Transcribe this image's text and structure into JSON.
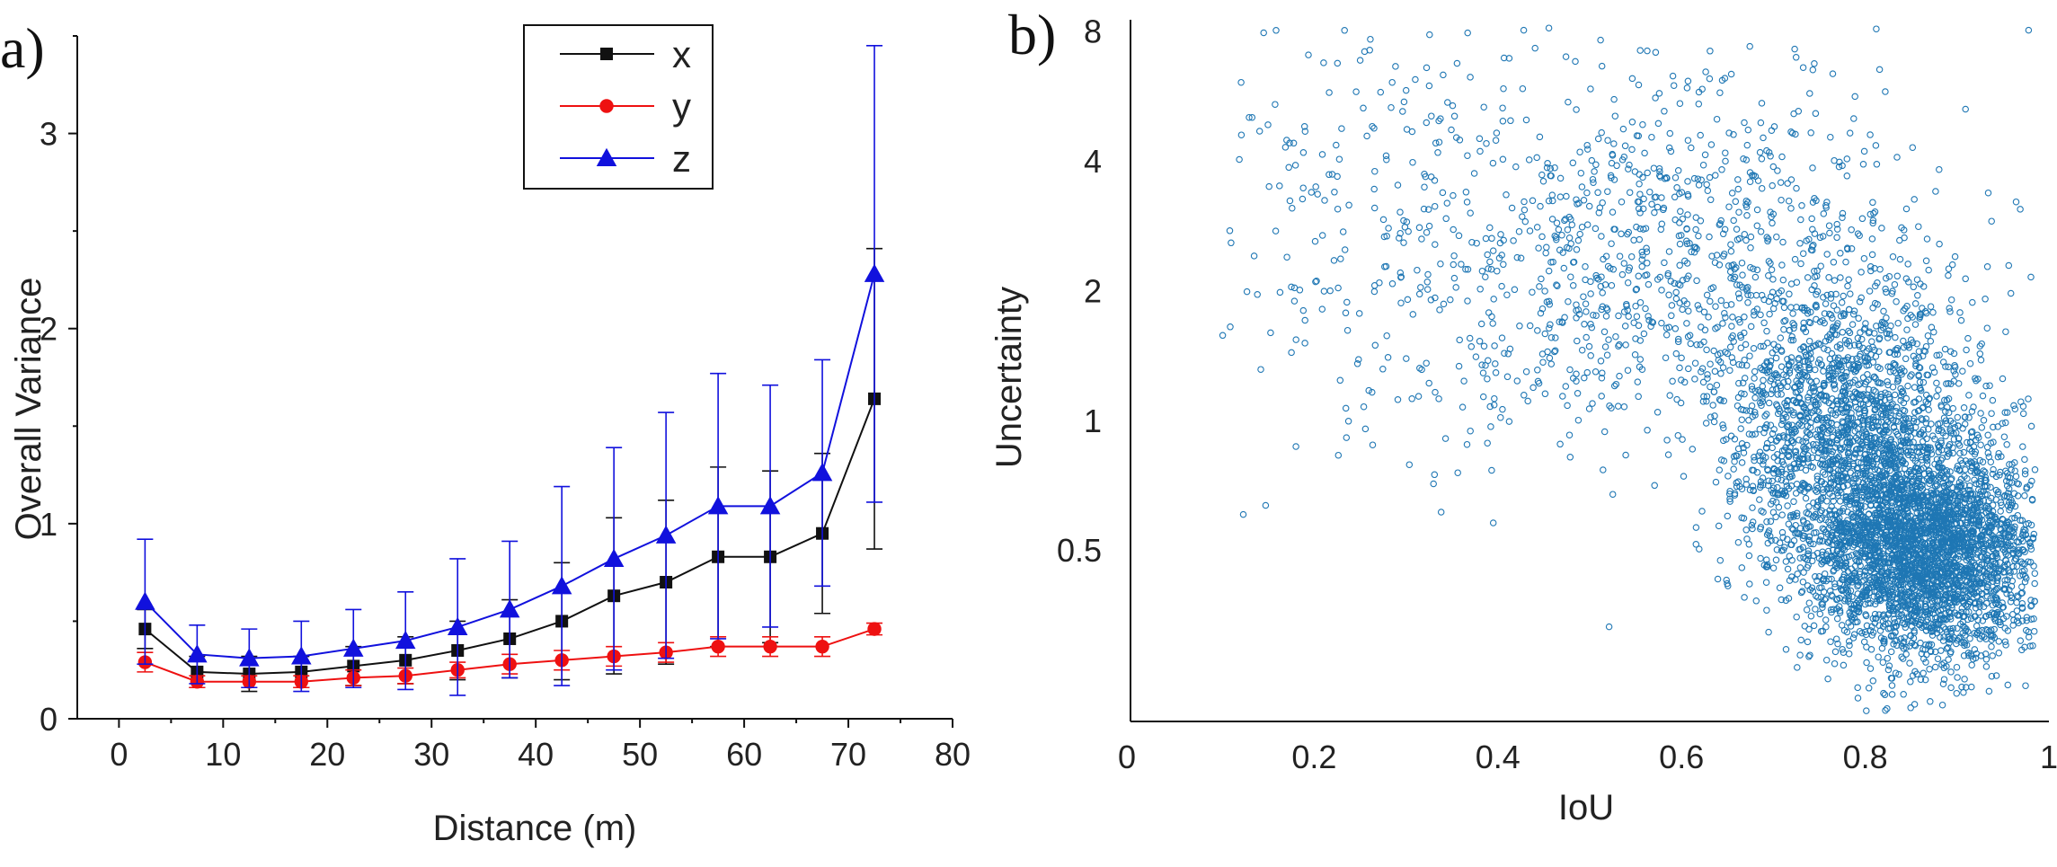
{
  "chart_data": [
    {
      "panel": "a)",
      "type": "line",
      "title": "",
      "xlabel": "Distance (m)",
      "ylabel": "Overall Variance",
      "xlim": [
        -4,
        80
      ],
      "ylim": [
        0,
        3.5
      ],
      "xticks": [
        0,
        10,
        20,
        30,
        40,
        50,
        60,
        70,
        80
      ],
      "xtick_labels": [
        "0",
        "10",
        "20",
        "30",
        "40",
        "50",
        "60",
        "70",
        "80"
      ],
      "yticks": [
        0,
        1,
        2,
        3
      ],
      "ytick_labels": [
        "0",
        "1",
        "2",
        "3"
      ],
      "grid": false,
      "legend_position": "top-center",
      "x": [
        2.5,
        7.5,
        12.5,
        17.5,
        22.5,
        27.5,
        32.5,
        37.5,
        42.5,
        47.5,
        52.5,
        57.5,
        62.5,
        67.5,
        72.5
      ],
      "series": [
        {
          "name": "x",
          "color": "#111111",
          "marker": "square",
          "values": [
            0.46,
            0.24,
            0.23,
            0.24,
            0.27,
            0.3,
            0.35,
            0.41,
            0.5,
            0.63,
            0.7,
            0.83,
            0.83,
            0.95,
            1.64
          ],
          "errors": [
            0.1,
            0.08,
            0.09,
            0.08,
            0.1,
            0.12,
            0.15,
            0.2,
            0.3,
            0.4,
            0.42,
            0.46,
            0.44,
            0.41,
            0.77
          ]
        },
        {
          "name": "y",
          "color": "#ee1111",
          "marker": "circle",
          "values": [
            0.29,
            0.19,
            0.19,
            0.19,
            0.21,
            0.22,
            0.25,
            0.28,
            0.3,
            0.32,
            0.34,
            0.37,
            0.37,
            0.37,
            0.46
          ],
          "errors": [
            0.05,
            0.03,
            0.03,
            0.03,
            0.04,
            0.04,
            0.04,
            0.05,
            0.05,
            0.05,
            0.05,
            0.05,
            0.05,
            0.05,
            0.03
          ]
        },
        {
          "name": "z",
          "color": "#1111dd",
          "marker": "triangle",
          "values": [
            0.6,
            0.33,
            0.31,
            0.32,
            0.36,
            0.4,
            0.47,
            0.56,
            0.68,
            0.82,
            0.94,
            1.09,
            1.09,
            1.26,
            2.28
          ],
          "errors": [
            0.32,
            0.15,
            0.15,
            0.18,
            0.2,
            0.25,
            0.35,
            0.35,
            0.51,
            0.57,
            0.63,
            0.68,
            0.62,
            0.58,
            1.17
          ]
        }
      ]
    },
    {
      "panel": "b)",
      "type": "scatter",
      "title": "",
      "xlabel": "IoU",
      "ylabel": "Uncertainty",
      "xlim": [
        0,
        1
      ],
      "ylim": [
        0.2,
        8.5
      ],
      "yscale": "log",
      "xticks": [
        0,
        0.2,
        0.4,
        0.6,
        0.8,
        1
      ],
      "xtick_labels": [
        "0",
        "0.2",
        "0.4",
        "0.6",
        "0.8",
        "1"
      ],
      "yticks": [
        0.5,
        1,
        2,
        4,
        8
      ],
      "ytick_labels": [
        "0.5",
        "1",
        "2",
        "4",
        "8"
      ],
      "grid": false,
      "marker": "open-circle",
      "color": "#1f77b4",
      "n_points_approx": 6000,
      "clusters": [
        {
          "iou_center": 0.87,
          "iou_spread": 0.06,
          "uncertainty_center": 0.5,
          "uncertainty_spread_log": 0.3,
          "weight": 0.5
        },
        {
          "iou_center": 0.78,
          "iou_spread": 0.07,
          "uncertainty_center": 0.9,
          "uncertainty_spread_log": 0.4,
          "weight": 0.3
        },
        {
          "iou_center": 0.6,
          "iou_spread": 0.15,
          "uncertainty_center": 2.3,
          "uncertainty_spread_log": 0.5,
          "weight": 0.15
        },
        {
          "iou_center": 0.3,
          "iou_spread": 0.12,
          "uncertainty_center": 3,
          "uncertainty_spread_log": 0.6,
          "weight": 0.05
        }
      ]
    }
  ]
}
